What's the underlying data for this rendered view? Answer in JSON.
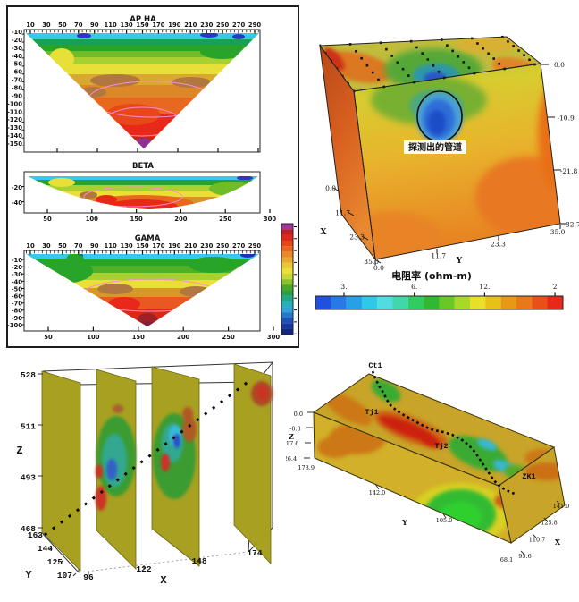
{
  "chart_data": [
    {
      "id": "resistivity-pseudosections",
      "type": "contour",
      "panels": [
        {
          "title": "AP HA",
          "top_axis_ticks": [
            "10",
            "30",
            "50",
            "70",
            "90",
            "110",
            "130",
            "150",
            "170",
            "190",
            "210",
            "230",
            "250",
            "270",
            "290"
          ],
          "left_axis_ticks": [
            "-10",
            "-20",
            "-30",
            "-40",
            "-50",
            "-60",
            "-70",
            "-80",
            "-90",
            "-100",
            "-110",
            "-120",
            "-130",
            "-140",
            "-150"
          ]
        },
        {
          "title": "BETA",
          "left_axis_ticks": [
            "-20",
            "-40"
          ],
          "bottom_axis_ticks": [
            "50",
            "100",
            "150",
            "200",
            "250",
            "300"
          ]
        },
        {
          "title": "GAMA",
          "top_axis_ticks": [
            "10",
            "30",
            "50",
            "70",
            "90",
            "110",
            "130",
            "150",
            "170",
            "190",
            "210",
            "230",
            "250",
            "270",
            "290"
          ],
          "left_axis_ticks": [
            "-10",
            "-20",
            "-30",
            "-40",
            "-50",
            "-60",
            "-70",
            "-80",
            "-90",
            "-100"
          ],
          "bottom_axis_ticks": [
            "50",
            "100",
            "150",
            "200",
            "250",
            "300"
          ]
        }
      ],
      "colorbar_colors": [
        "#a03898",
        "#c02020",
        "#e02818",
        "#e84818",
        "#e86820",
        "#e88828",
        "#e8a830",
        "#e8c832",
        "#e8e038",
        "#c8d830",
        "#88c030",
        "#48a828",
        "#28a048",
        "#20a888",
        "#28b0c0",
        "#30a0d8",
        "#2878c8",
        "#2050b8",
        "#1838a0",
        "#102880"
      ]
    },
    {
      "id": "resistivity-cube",
      "type": "3d-volume",
      "x_axis": {
        "label": "X",
        "ticks": [
          "0.0",
          "11.7",
          "23.3",
          "35.0"
        ]
      },
      "y_axis": {
        "label": "Y",
        "ticks": [
          "0.0",
          "11.7",
          "23.3",
          "35.0"
        ]
      },
      "z_axis": {
        "ticks": [
          "0.0",
          "-10.9",
          "-21.8",
          "-32.7"
        ]
      },
      "annotation": "探测出的管道",
      "colorbar": {
        "title": "电阻率 (ohm-m)",
        "tick_labels": [
          "3.",
          "6.",
          "12.",
          "2"
        ],
        "colors": [
          "#2050e0",
          "#2878e8",
          "#28a0e8",
          "#30c8e8",
          "#50dce0",
          "#40d8a8",
          "#30cc60",
          "#30b830",
          "#68c828",
          "#a8d828",
          "#e8e028",
          "#e8c018",
          "#e89818",
          "#e87818",
          "#e85018",
          "#e82818"
        ]
      }
    },
    {
      "id": "fence-slices",
      "type": "3d-slices",
      "z_axis": {
        "label": "Z",
        "ticks": [
          "528",
          "511",
          "493",
          "468"
        ]
      },
      "y_axis": {
        "label": "Y",
        "ticks": [
          "163",
          "144",
          "125",
          "107"
        ]
      },
      "x_axis": {
        "label": "X",
        "ticks": [
          "96",
          "122",
          "148",
          "174"
        ]
      }
    },
    {
      "id": "borehole-slab",
      "type": "3d-volume",
      "markers": [
        "Ct1",
        "Tj1",
        "Tj2",
        "ZK1"
      ],
      "z_axis": {
        "label": "Z",
        "ticks": [
          "0.0",
          "-8.8",
          "-17.6",
          "-26.4"
        ]
      },
      "y_axis": {
        "label": "Y",
        "ticks": [
          "142.0",
          "105.0"
        ],
        "corner_tick": "178.9"
      },
      "x_axis": {
        "label": "X",
        "ticks": [
          "141.0",
          "125.8",
          "110.7",
          "95.6"
        ],
        "corner_tick": "68.1"
      }
    }
  ]
}
